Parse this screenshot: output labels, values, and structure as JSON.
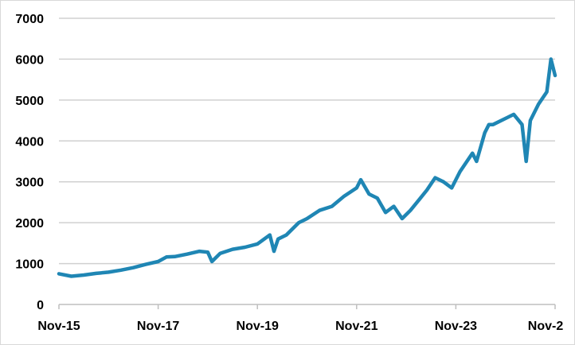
{
  "chart_data": {
    "type": "line",
    "title": "",
    "xlabel": "",
    "ylabel": "",
    "x_ticks": [
      "Nov-15",
      "Nov-17",
      "Nov-19",
      "Nov-21",
      "Nov-23",
      "Nov-2"
    ],
    "y_ticks": [
      "0",
      "1000",
      "2000",
      "3000",
      "4000",
      "5000",
      "6000",
      "7000"
    ],
    "xlim": [
      "2015-11",
      "2025-11"
    ],
    "ylim": [
      0,
      7000
    ],
    "grid": "horizontal",
    "legend": "none",
    "line_color": "#1f86b4",
    "series": [
      {
        "x": [
          "2015-11",
          "2016-02",
          "2016-05",
          "2016-08",
          "2016-11",
          "2017-02",
          "2017-05",
          "2017-08",
          "2017-11",
          "2018-01",
          "2018-03",
          "2018-06",
          "2018-09",
          "2018-11",
          "2018-12",
          "2019-02",
          "2019-05",
          "2019-08",
          "2019-11",
          "2020-02",
          "2020-03",
          "2020-04",
          "2020-06",
          "2020-09",
          "2020-11",
          "2021-02",
          "2021-05",
          "2021-08",
          "2021-11",
          "2021-12",
          "2022-02",
          "2022-04",
          "2022-06",
          "2022-08",
          "2022-10",
          "2022-12",
          "2023-02",
          "2023-04",
          "2023-06",
          "2023-08",
          "2023-10",
          "2023-12",
          "2024-03",
          "2024-04",
          "2024-06",
          "2024-07",
          "2024-08",
          "2024-11",
          "2025-01",
          "2025-03",
          "2025-04",
          "2025-05",
          "2025-07",
          "2025-09",
          "2025-10",
          "2025-11"
        ],
        "values": [
          750,
          690,
          720,
          760,
          790,
          840,
          900,
          980,
          1050,
          1160,
          1170,
          1230,
          1300,
          1280,
          1050,
          1250,
          1350,
          1400,
          1480,
          1700,
          1300,
          1600,
          1700,
          2000,
          2100,
          2300,
          2400,
          2650,
          2850,
          3050,
          2700,
          2600,
          2250,
          2400,
          2100,
          2300,
          2550,
          2800,
          3100,
          3000,
          2850,
          3250,
          3700,
          3500,
          4200,
          4400,
          4400,
          4550,
          4650,
          4400,
          3500,
          4500,
          4900,
          5200,
          6000,
          5600
        ]
      }
    ]
  }
}
